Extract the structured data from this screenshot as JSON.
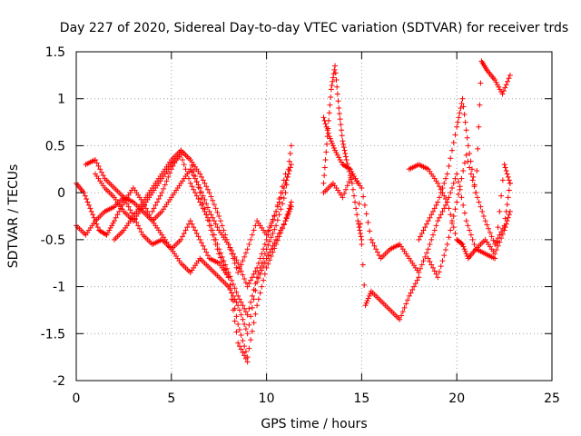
{
  "chart_data": {
    "type": "scatter",
    "title": "Day 227 of 2020, Sidereal Day-to-day VTEC variation (SDTVAR) for receiver trds",
    "xlabel": "GPS time / hours",
    "ylabel": "SDTVAR / TECUs",
    "xlim": [
      0,
      25
    ],
    "ylim": [
      -2,
      1.5
    ],
    "x_ticks": [
      "0",
      "5",
      "10",
      "15",
      "20",
      "25"
    ],
    "y_ticks": [
      "-2",
      "-1.5",
      "-1",
      "-0.5",
      "0",
      "0.5",
      "1",
      "1.5"
    ],
    "grid": true,
    "legend": "none",
    "marker": "+",
    "color": "#ff0000",
    "series": [
      {
        "tracks": [
          {
            "x": [
              0.0,
              0.5,
              1.0,
              1.5,
              2.0,
              2.5,
              3.0,
              3.5,
              4.0,
              4.5,
              5.0,
              5.5,
              6.0,
              6.5,
              7.0,
              7.5,
              8.0,
              8.5,
              9.0,
              9.5,
              10.0,
              10.5,
              11.0,
              11.3
            ],
            "y": [
              -0.35,
              -0.45,
              -0.3,
              -0.2,
              -0.15,
              -0.05,
              -0.25,
              -0.45,
              -0.55,
              -0.5,
              -0.6,
              -0.75,
              -0.85,
              -0.7,
              -0.8,
              -0.9,
              -1.0,
              -1.2,
              -1.5,
              -0.95,
              -0.7,
              -0.5,
              -0.3,
              -0.1
            ]
          },
          {
            "x": [
              0.0,
              0.4,
              0.8,
              1.2,
              1.6,
              2.0,
              2.5,
              3.0,
              3.5,
              4.0,
              4.5,
              5.0,
              5.5,
              6.0,
              6.5,
              7.0,
              7.5,
              8.0,
              8.5,
              9.0,
              9.5,
              10.0,
              10.5,
              11.0,
              11.3
            ],
            "y": [
              0.1,
              0.0,
              -0.2,
              -0.4,
              -0.45,
              -0.3,
              -0.1,
              0.05,
              -0.1,
              -0.3,
              -0.45,
              -0.6,
              -0.5,
              -0.3,
              -0.5,
              -0.7,
              -0.75,
              -0.9,
              -1.4,
              -1.75,
              -1.2,
              -0.8,
              -0.55,
              -0.3,
              -0.15
            ]
          },
          {
            "x": [
              0.5,
              1.0,
              1.5,
              2.0,
              2.5,
              3.0,
              3.5,
              4.0,
              4.5,
              5.0,
              5.5,
              6.0,
              6.5,
              7.0,
              7.5,
              8.0,
              8.5,
              9.0,
              9.5,
              10.0,
              10.5,
              11.0,
              11.3
            ],
            "y": [
              0.3,
              0.35,
              0.15,
              0.05,
              -0.05,
              -0.1,
              -0.2,
              -0.3,
              -0.2,
              -0.05,
              0.1,
              0.25,
              0.05,
              -0.2,
              -0.4,
              -0.55,
              -0.75,
              -1.0,
              -0.8,
              -0.5,
              -0.2,
              0.1,
              0.3
            ]
          },
          {
            "x": [
              1.0,
              1.5,
              2.0,
              2.5,
              3.0,
              3.5,
              4.0,
              4.5,
              5.0,
              5.5,
              6.0,
              6.5,
              7.0,
              7.5,
              8.0,
              8.5,
              9.0,
              9.5,
              10.0,
              10.5,
              11.0,
              11.3
            ],
            "y": [
              0.2,
              0.05,
              -0.05,
              -0.2,
              -0.3,
              -0.15,
              0.0,
              0.15,
              0.3,
              0.4,
              0.1,
              -0.1,
              -0.3,
              -0.6,
              -0.85,
              -1.1,
              -1.3,
              -0.9,
              -0.6,
              -0.35,
              0.0,
              0.5
            ]
          },
          {
            "x": [
              2.0,
              2.5,
              3.0,
              3.5,
              4.0,
              4.5,
              5.0,
              5.5,
              6.0,
              6.5,
              7.0,
              7.5,
              8.0,
              8.5,
              9.0,
              9.5,
              10.0,
              10.5,
              11.0
            ],
            "y": [
              -0.5,
              -0.4,
              -0.25,
              -0.1,
              0.05,
              0.2,
              0.35,
              0.45,
              0.35,
              0.2,
              0.0,
              -0.25,
              -0.55,
              -0.85,
              -0.6,
              -0.3,
              -0.45,
              -0.2,
              0.2
            ]
          },
          {
            "x": [
              4.0,
              4.5,
              5.0,
              5.5,
              6.0,
              6.5,
              7.0,
              7.5,
              8.0,
              8.5,
              9.0
            ],
            "y": [
              -0.2,
              0.0,
              0.25,
              0.45,
              0.35,
              0.0,
              -0.35,
              -0.65,
              -0.9,
              -1.6,
              -1.8
            ]
          },
          {
            "x": [
              13.0,
              13.2,
              13.4,
              13.6,
              13.8,
              14.0,
              14.2,
              14.5,
              14.8,
              15.0
            ],
            "y": [
              0.1,
              0.6,
              1.1,
              1.35,
              0.9,
              0.55,
              0.35,
              0.1,
              -0.3,
              -0.5
            ]
          },
          {
            "x": [
              13.0,
              13.3,
              13.6,
              14.0,
              14.4,
              14.8,
              15.2,
              15.5,
              16.0,
              16.5,
              17.0,
              17.5,
              18.0
            ],
            "y": [
              0.8,
              0.6,
              0.45,
              0.3,
              0.25,
              0.1,
              -1.2,
              -1.05,
              -1.15,
              -1.25,
              -1.35,
              -1.1,
              -0.9
            ]
          },
          {
            "x": [
              13.0,
              13.5,
              14.0,
              14.5,
              15.0,
              15.5,
              16.0,
              16.5,
              17.0,
              17.5,
              18.0,
              18.5,
              19.0,
              19.5,
              20.0,
              20.5,
              21.0,
              21.5,
              22.0,
              22.5,
              22.8
            ],
            "y": [
              0.0,
              0.1,
              -0.05,
              0.2,
              0.05,
              -0.5,
              -0.7,
              -0.6,
              -0.55,
              -0.7,
              -0.85,
              -0.6,
              -0.3,
              -0.1,
              0.2,
              -0.3,
              -0.6,
              -0.5,
              -0.65,
              -0.4,
              -0.2
            ]
          },
          {
            "x": [
              17.5,
              18.0,
              18.5,
              19.0,
              19.5,
              20.0,
              20.3,
              20.6,
              21.0,
              21.5,
              22.0,
              22.5,
              22.8
            ],
            "y": [
              0.25,
              0.3,
              0.25,
              0.1,
              -0.1,
              -0.5,
              -0.55,
              -0.7,
              -0.6,
              -0.65,
              -0.7,
              0.3,
              0.1
            ]
          },
          {
            "x": [
              18.0,
              18.5,
              19.0,
              19.5,
              20.0,
              20.3,
              20.6,
              21.0,
              21.3,
              21.6,
              22.0,
              22.4,
              22.8
            ],
            "y": [
              -0.5,
              -0.3,
              -0.1,
              0.2,
              0.7,
              1.0,
              0.5,
              0.0,
              1.4,
              1.3,
              1.2,
              1.05,
              1.25
            ]
          },
          {
            "x": [
              18.5,
              19.0,
              19.5,
              20.0,
              20.5,
              21.0,
              21.5,
              22.0,
              22.5,
              22.8
            ],
            "y": [
              -0.7,
              -0.9,
              -0.55,
              -0.1,
              0.4,
              0.0,
              -0.3,
              -0.55,
              -0.35,
              0.1
            ]
          }
        ]
      }
    ]
  }
}
